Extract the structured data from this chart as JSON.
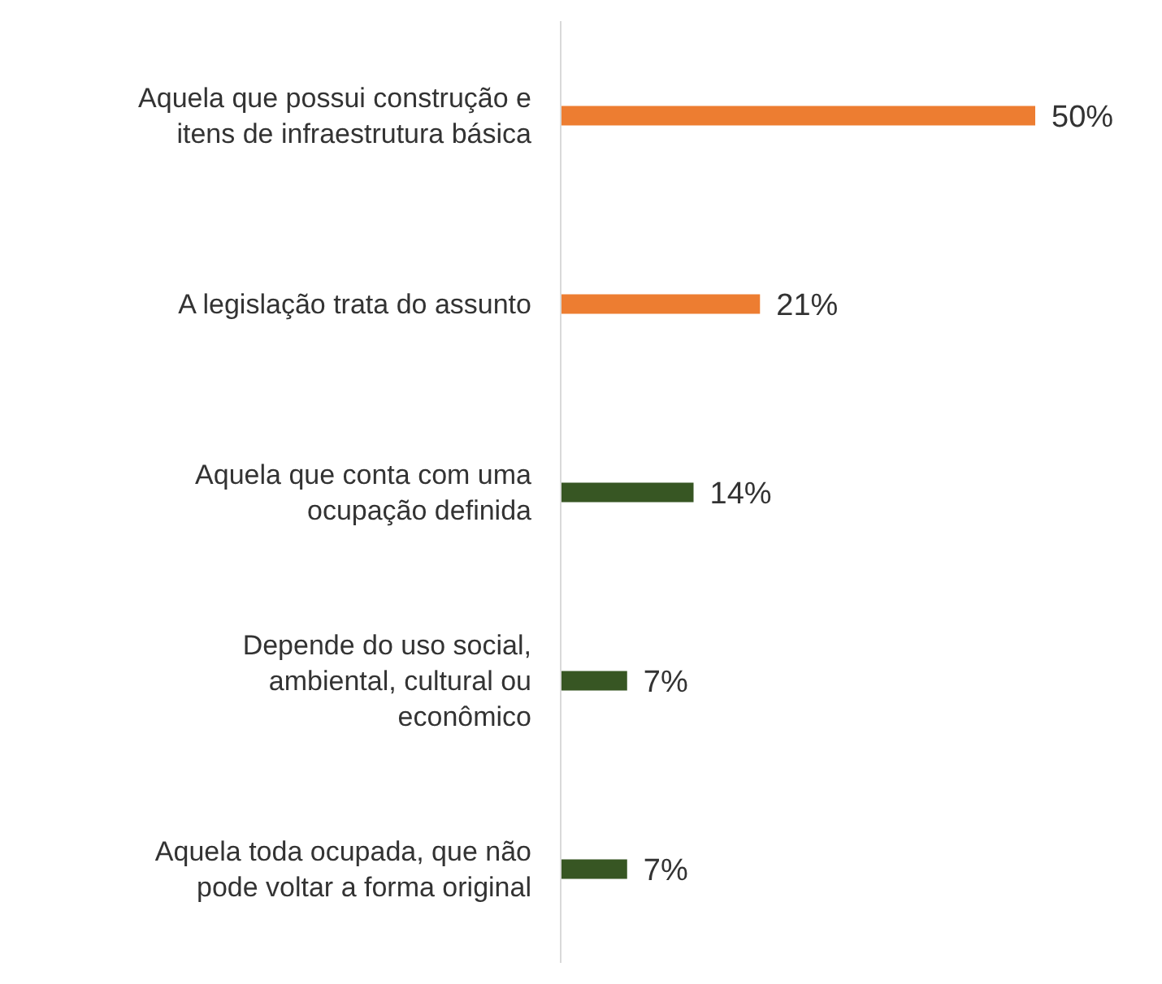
{
  "chart_data": {
    "type": "bar",
    "orientation": "horizontal",
    "categories": [
      "Aquela que possui construção e itens de infraestrutura básica",
      "A legislação trata do assunto",
      "Aquela que conta com uma ocupação definida",
      "Depende do uso social, ambiental, cultural ou econômico",
      "Aquela toda ocupada, que não pode voltar a forma original"
    ],
    "values": [
      50,
      21,
      14,
      7,
      7
    ],
    "colors": [
      "#ed7d31",
      "#ed7d31",
      "#375623",
      "#375623",
      "#375623"
    ],
    "value_labels": [
      "50%",
      "21%",
      "14%",
      "7%",
      "7%"
    ],
    "grid": false,
    "legend": false
  }
}
